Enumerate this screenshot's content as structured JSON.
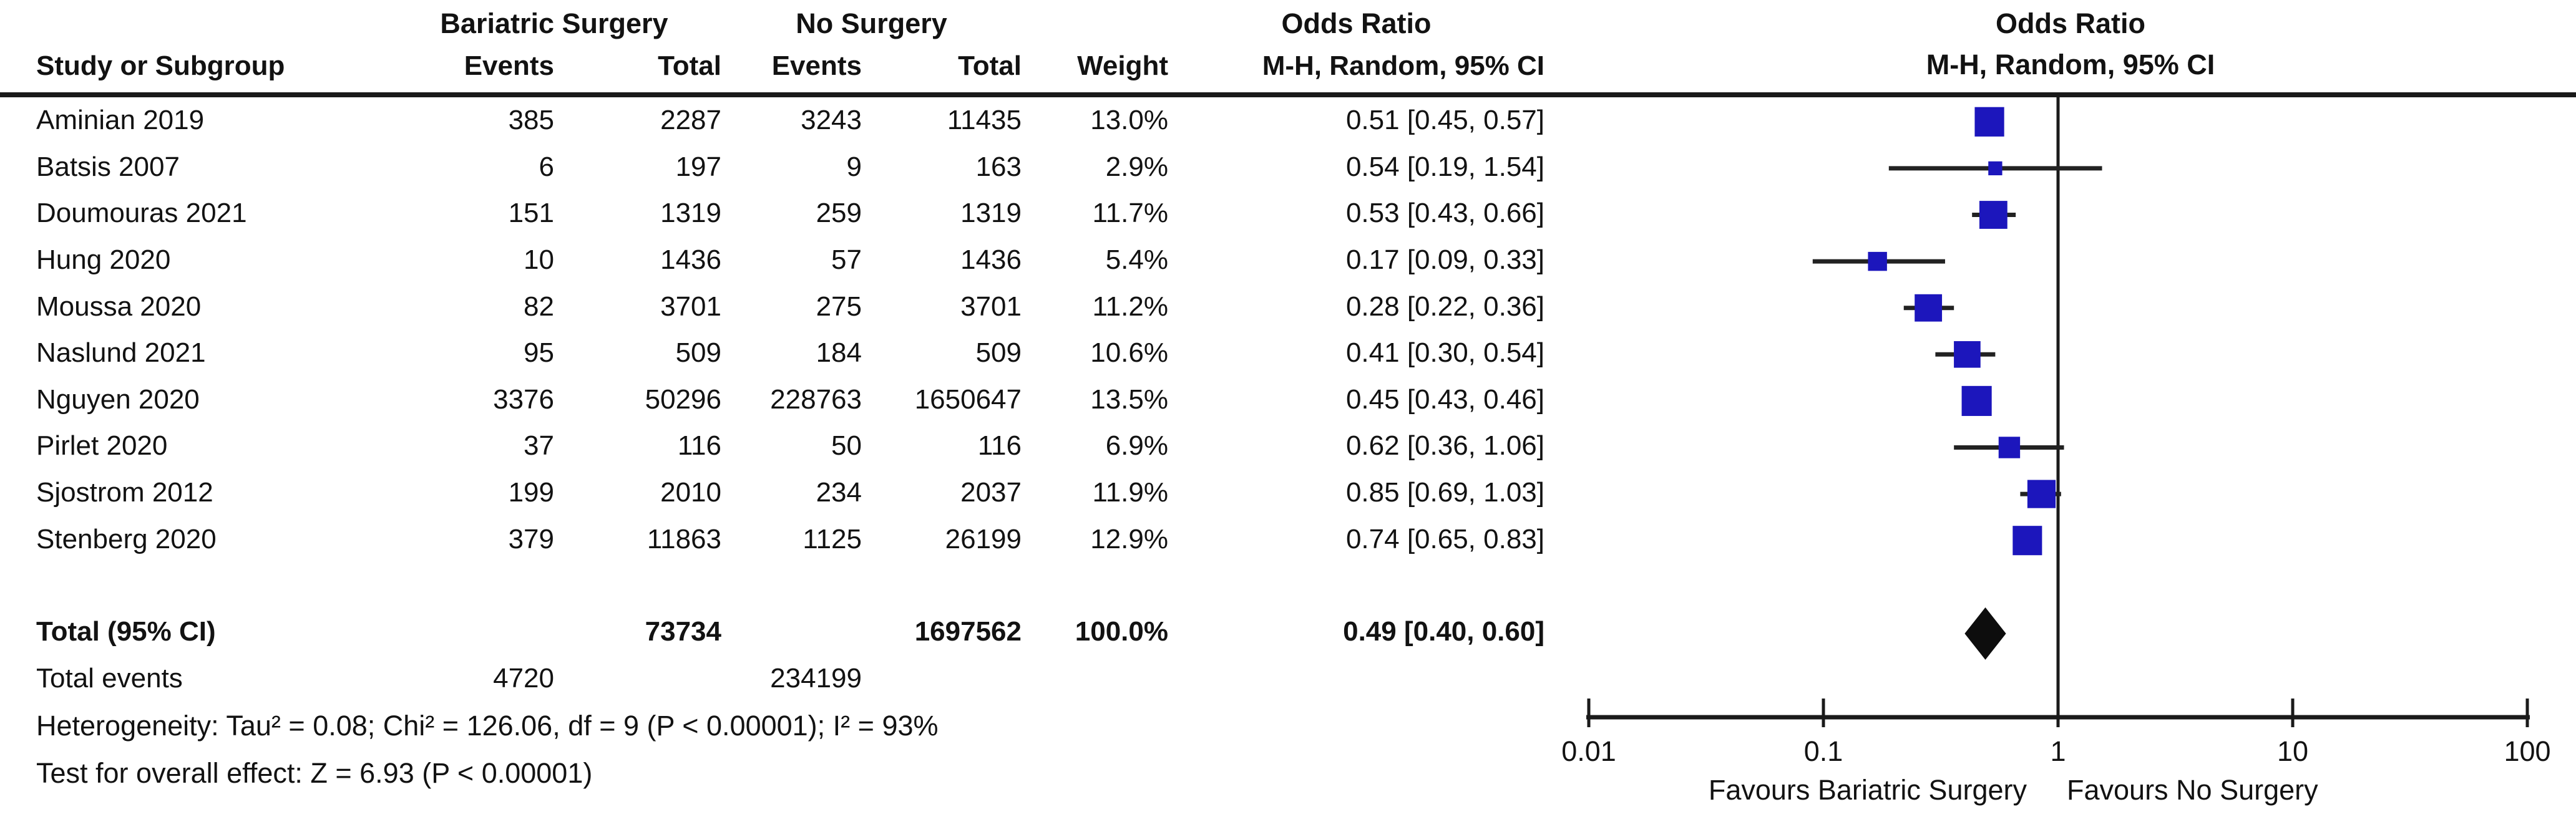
{
  "colors": {
    "background": "#ffffff",
    "text": "#121212",
    "rule": "#1a1a1a",
    "square": "#1c16bc",
    "ci_line": "#222222",
    "diamond": "#0d0d0d"
  },
  "table": {
    "group_headers": {
      "bariatric": "Bariatric Surgery",
      "no_surgery": "No Surgery",
      "odds_ratio_text_col": "Odds Ratio",
      "odds_ratio_plot_col": "Odds Ratio"
    },
    "col_headers": {
      "study": "Study or Subgroup",
      "events_surgery": "Events",
      "total_surgery": "Total",
      "events_nosurgery": "Events",
      "total_nosurgery": "Total",
      "weight": "Weight",
      "mh_text_col": "M-H, Random, 95% CI",
      "mh_plot_col": "M-H, Random, 95% CI"
    }
  },
  "chart_data": {
    "type": "forest",
    "x_scale": "log10",
    "x_range": [
      0.01,
      100
    ],
    "x_ticks": [
      0.01,
      0.1,
      1,
      10,
      100
    ],
    "x_tick_labels": [
      "0.01",
      "0.1",
      "1",
      "10",
      "100"
    ],
    "null_line_value": 1,
    "favours_left": "Favours Bariatric Surgery",
    "favours_right": "Favours No Surgery",
    "studies": [
      {
        "name": "Aminian 2019",
        "events1": "385",
        "total1": "2287",
        "events2": "3243",
        "total2": "11435",
        "weight": "13.0%",
        "ci_text": "0.51 [0.45, 0.57]",
        "or": 0.51,
        "lo": 0.45,
        "hi": 0.57,
        "weight_pct": 13.0
      },
      {
        "name": "Batsis 2007",
        "events1": "6",
        "total1": "197",
        "events2": "9",
        "total2": "163",
        "weight": "2.9%",
        "ci_text": "0.54 [0.19, 1.54]",
        "or": 0.54,
        "lo": 0.19,
        "hi": 1.54,
        "weight_pct": 2.9
      },
      {
        "name": "Doumouras 2021",
        "events1": "151",
        "total1": "1319",
        "events2": "259",
        "total2": "1319",
        "weight": "11.7%",
        "ci_text": "0.53 [0.43, 0.66]",
        "or": 0.53,
        "lo": 0.43,
        "hi": 0.66,
        "weight_pct": 11.7
      },
      {
        "name": "Hung 2020",
        "events1": "10",
        "total1": "1436",
        "events2": "57",
        "total2": "1436",
        "weight": "5.4%",
        "ci_text": "0.17 [0.09, 0.33]",
        "or": 0.17,
        "lo": 0.09,
        "hi": 0.33,
        "weight_pct": 5.4
      },
      {
        "name": "Moussa 2020",
        "events1": "82",
        "total1": "3701",
        "events2": "275",
        "total2": "3701",
        "weight": "11.2%",
        "ci_text": "0.28 [0.22, 0.36]",
        "or": 0.28,
        "lo": 0.22,
        "hi": 0.36,
        "weight_pct": 11.2
      },
      {
        "name": "Naslund 2021",
        "events1": "95",
        "total1": "509",
        "events2": "184",
        "total2": "509",
        "weight": "10.6%",
        "ci_text": "0.41 [0.30, 0.54]",
        "or": 0.41,
        "lo": 0.3,
        "hi": 0.54,
        "weight_pct": 10.6
      },
      {
        "name": "Nguyen 2020",
        "events1": "3376",
        "total1": "50296",
        "events2": "228763",
        "total2": "1650647",
        "weight": "13.5%",
        "ci_text": "0.45 [0.43, 0.46]",
        "or": 0.45,
        "lo": 0.43,
        "hi": 0.46,
        "weight_pct": 13.5
      },
      {
        "name": "Pirlet 2020",
        "events1": "37",
        "total1": "116",
        "events2": "50",
        "total2": "116",
        "weight": "6.9%",
        "ci_text": "0.62 [0.36, 1.06]",
        "or": 0.62,
        "lo": 0.36,
        "hi": 1.06,
        "weight_pct": 6.9
      },
      {
        "name": "Sjostrom 2012",
        "events1": "199",
        "total1": "2010",
        "events2": "234",
        "total2": "2037",
        "weight": "11.9%",
        "ci_text": "0.85 [0.69, 1.03]",
        "or": 0.85,
        "lo": 0.69,
        "hi": 1.03,
        "weight_pct": 11.9
      },
      {
        "name": "Stenberg 2020",
        "events1": "379",
        "total1": "11863",
        "events2": "1125",
        "total2": "26199",
        "weight": "12.9%",
        "ci_text": "0.74 [0.65, 0.83]",
        "or": 0.74,
        "lo": 0.65,
        "hi": 0.83,
        "weight_pct": 12.9
      }
    ],
    "total": {
      "label": "Total (95% CI)",
      "total1": "73734",
      "total2": "1697562",
      "weight": "100.0%",
      "ci_text": "0.49 [0.40, 0.60]",
      "or": 0.49,
      "lo": 0.4,
      "hi": 0.6
    },
    "total_events": {
      "label": "Total events",
      "events1": "4720",
      "events2": "234199"
    }
  },
  "footer": {
    "heterogeneity": "Heterogeneity: Tau² = 0.08; Chi² = 126.06, df = 9 (P < 0.00001); I² = 93%",
    "overall_effect": "Test for overall effect: Z = 6.93 (P < 0.00001)"
  }
}
